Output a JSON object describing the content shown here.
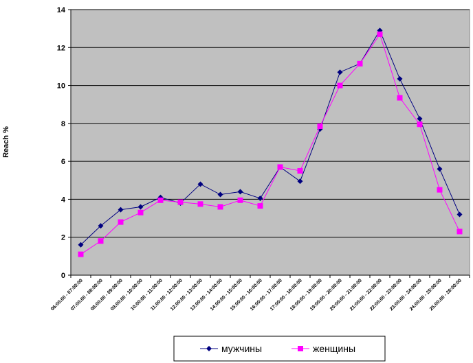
{
  "chart_data": {
    "type": "line",
    "ylabel": "Reach %",
    "ylim": [
      0,
      14
    ],
    "yticks": [
      "0",
      "2",
      "4",
      "6",
      "8",
      "10",
      "12",
      "14"
    ],
    "grid": true,
    "legend_position": "bottom",
    "plot_background": "#c0c0c0",
    "categories": [
      "06:00:00 - 07:00:00",
      "07:00:00 - 08:00:00",
      "08:00:00 - 09:00:00",
      "09:00:00 - 10:00:00",
      "10:00:00 - 11:00:00",
      "11:00:00 - 12:00:00",
      "12:00:00 - 13:00:00",
      "13:00:00 - 14:00:00",
      "14:00:00 - 15:00:00",
      "15:00:00 - 16:00:00",
      "16:00:00 - 17:00:00",
      "17:00:00 - 18:00:00",
      "18:00:00 - 19:00:00",
      "19:00:00 - 20:00:00",
      "20:00:00 - 21:00:00",
      "21:00:00 - 22:00:00",
      "22:00:00 - 23:00:00",
      "23:00:00 - 24:00:00",
      "24:00:00 - 25:00:00",
      "25:00:00 - 26:00:00"
    ],
    "series": [
      {
        "name": "мужчины",
        "color": "#000080",
        "marker": "diamond",
        "values": [
          1.6,
          2.6,
          3.45,
          3.6,
          4.1,
          3.8,
          4.8,
          4.25,
          4.4,
          4.05,
          5.7,
          4.95,
          7.7,
          10.7,
          11.15,
          12.9,
          10.35,
          8.25,
          5.6,
          3.2
        ]
      },
      {
        "name": "женщины",
        "color": "#ff00ff",
        "marker": "square",
        "values": [
          1.1,
          1.8,
          2.8,
          3.3,
          3.95,
          3.85,
          3.75,
          3.6,
          3.95,
          3.65,
          5.7,
          5.5,
          7.85,
          10.0,
          11.15,
          12.7,
          9.35,
          7.95,
          4.5,
          2.3
        ]
      }
    ]
  }
}
